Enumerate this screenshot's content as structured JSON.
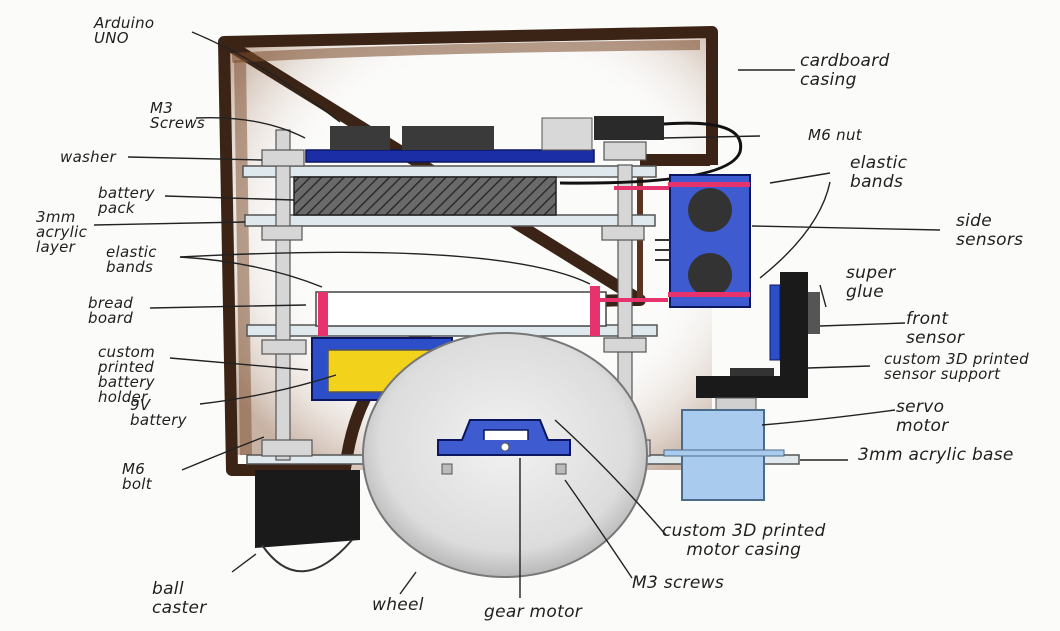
{
  "labels": {
    "arduino": "Arduino\nUNO",
    "m3_screws_top": "M3\nScrews",
    "washer": "washer",
    "battery_pack": "battery\npack",
    "acrylic_layer": "3mm\nacrylic\nlayer",
    "elastic_bands_left": "elastic\nbands",
    "bread_board": "bread\nboard",
    "battery_holder": "custom\nprinted\nbattery\nholder",
    "battery_9v": "9V\nbattery",
    "m6_bolt": "M6\nbolt",
    "ball_caster": "ball\ncaster",
    "wheel": "wheel",
    "gear_motor": "gear motor",
    "m3_screws_bottom": "M3 screws",
    "motor_casing": "custom 3D printed\nmotor casing",
    "acrylic_base": "3mm acrylic base",
    "servo_motor": "servo\nmotor",
    "sensor_support": "custom 3D printed\nsensor support",
    "front_sensor": "front\nsensor",
    "super_glue": "super\nglue",
    "side_sensors": "side\nsensors",
    "elastic_bands_right": "elastic\nbands",
    "m6_nut": "M6 nut",
    "cardboard_casing": "cardboard\ncasing"
  },
  "colors": {
    "cardboard": "#3b2416",
    "acrylic": "#dfe8ec",
    "blue_board": "#1b2ea6",
    "sensor_blue": "#3f5bd0",
    "yellow_battery": "#f2d21b",
    "elastic_pink": "#e6336e",
    "servo_blue": "#a9cbee",
    "black_part": "#1a1a1a"
  }
}
